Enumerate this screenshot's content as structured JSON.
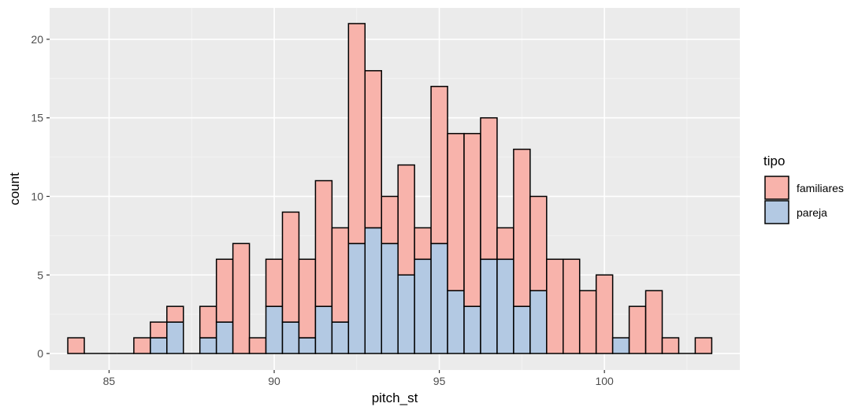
{
  "chart_data": {
    "type": "bar",
    "subtype": "stacked-histogram",
    "title": "",
    "xlabel": "pitch_st",
    "ylabel": "count",
    "xlim": [
      83.2,
      104.1
    ],
    "ylim": [
      -1.05,
      22
    ],
    "x_ticks": [
      85,
      90,
      95,
      100
    ],
    "x_tick_labels": [
      "85",
      "90",
      "95",
      "100"
    ],
    "y_ticks": [
      0,
      5,
      10,
      15,
      20
    ],
    "y_tick_labels": [
      "0",
      "5",
      "10",
      "15",
      "20"
    ],
    "grid": true,
    "legend": {
      "title": "tipo",
      "position": "right"
    },
    "bin_width": 0.5,
    "bin_centers": [
      84.0,
      84.5,
      85.0,
      85.5,
      86.0,
      86.5,
      87.0,
      87.5,
      88.0,
      88.5,
      89.0,
      89.5,
      90.0,
      90.5,
      91.0,
      91.5,
      92.0,
      92.5,
      93.0,
      93.5,
      94.0,
      94.5,
      95.0,
      95.5,
      96.0,
      96.5,
      97.0,
      97.5,
      98.0,
      98.5,
      99.0,
      99.5,
      100.0,
      100.5,
      101.0,
      101.5,
      102.0,
      102.5,
      103.0
    ],
    "series": [
      {
        "name": "pareja",
        "values": [
          0,
          0,
          0,
          0,
          0,
          1,
          2,
          0,
          1,
          2,
          0,
          0,
          3,
          2,
          1,
          3,
          2,
          7,
          8,
          7,
          5,
          6,
          7,
          4,
          3,
          6,
          6,
          3,
          4,
          0,
          0,
          0,
          0,
          1,
          0,
          0,
          0,
          0,
          0
        ]
      },
      {
        "name": "familiares",
        "values": [
          1,
          0,
          0,
          0,
          1,
          1,
          1,
          0,
          2,
          4,
          7,
          1,
          3,
          7,
          5,
          8,
          6,
          14,
          10,
          3,
          7,
          2,
          10,
          10,
          11,
          9,
          2,
          10,
          6,
          6,
          6,
          4,
          5,
          0,
          3,
          4,
          1,
          0,
          1
        ]
      }
    ],
    "totals": [
      1,
      0,
      0,
      0,
      1,
      2,
      3,
      0,
      3,
      6,
      7,
      1,
      6,
      9,
      6,
      11,
      8,
      21,
      18,
      10,
      12,
      8,
      17,
      14,
      14,
      15,
      8,
      13,
      10,
      6,
      6,
      4,
      5,
      1,
      3,
      4,
      1,
      0,
      1
    ],
    "colors": {
      "familiares": "#f8b3ab",
      "pareja": "#b3c9e3",
      "outline": "#000000",
      "panel": "#ebebeb",
      "grid_major": "#ffffff",
      "grid_minor": "#f5f5f5"
    }
  }
}
